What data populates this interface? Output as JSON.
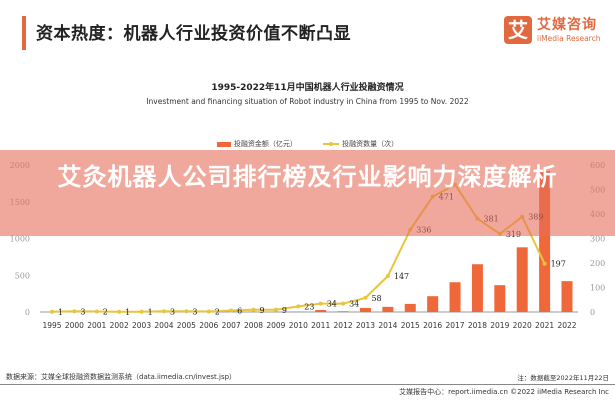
{
  "header": {
    "title": "资本热度：机器人行业投资价值不断凸显",
    "accent_color": "#e2683f"
  },
  "logo": {
    "mark": "艾",
    "name_cn": "艾媒咨询",
    "name_en": "iiMedia Research"
  },
  "chart_data": {
    "type": "bar+line",
    "title": "1995-2022年11月中国机器人行业投融资情况",
    "subtitle": "Investment and financing situation of Robot industry in China from 1995 to Nov. 2022",
    "categories": [
      "1995",
      "2000",
      "2001",
      "2002",
      "2003",
      "2004",
      "2005",
      "2006",
      "2007",
      "2008",
      "2009",
      "2010",
      "2011",
      "2012",
      "2013",
      "2014",
      "2015",
      "2016",
      "2017",
      "2018",
      "2019",
      "2020",
      "2021",
      "2022"
    ],
    "series": [
      {
        "name": "投融资金额（亿元）",
        "type": "bar",
        "axis": "left",
        "color": "#f0673a",
        "values": [
          0,
          0,
          0,
          0,
          0,
          0,
          0,
          0,
          1,
          2,
          2,
          5,
          27,
          10,
          55,
          70,
          110,
          215,
          405,
          650,
          365,
          880,
          1920,
          420
        ]
      },
      {
        "name": "投融资数量（次）",
        "type": "line",
        "axis": "right",
        "color": "#e8c53c",
        "values": [
          1,
          3,
          2,
          1,
          1,
          3,
          3,
          2,
          6,
          9,
          9,
          23,
          34,
          34,
          58,
          147,
          336,
          471,
          520,
          381,
          319,
          389,
          197,
          null
        ],
        "labels": [
          "1",
          "3",
          "2",
          "1",
          "1",
          "3",
          "3",
          "2",
          "6",
          "9",
          "9",
          "23",
          "34",
          "34",
          "58",
          "147",
          "336",
          "471",
          "",
          "381",
          "319",
          "389",
          "197",
          ""
        ]
      }
    ],
    "left_axis": {
      "ticks": [
        "0",
        "500",
        "1000",
        "1500",
        "2000"
      ],
      "ylim": [
        0,
        2000
      ]
    },
    "right_axis": {
      "ticks": [
        "0",
        "100",
        "200",
        "300",
        "400",
        "500",
        "600"
      ],
      "ylim": [
        0,
        600
      ]
    },
    "legend_position": "top",
    "grid": false
  },
  "legend": {
    "bar_label": "投融资金额（亿元）",
    "line_label": "投融资数量（次）"
  },
  "banner": {
    "text": "艾灸机器人公司排行榜及行业影响力深度解析"
  },
  "footer": {
    "source": "数据来源：艾媒全球投融资数据监测系统（data.iimedia.cn/invest.jsp）",
    "note": "注：数据截至2022年11月22日",
    "copyright": "艾媒报告中心：report.iimedia.cn  ©2022  iiMedia Research Inc"
  }
}
